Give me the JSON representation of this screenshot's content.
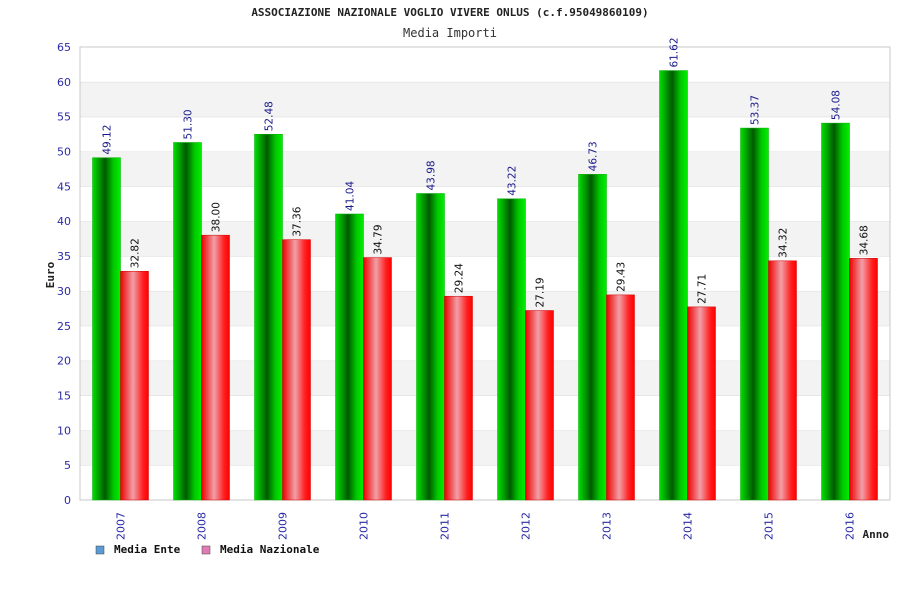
{
  "chart_data": {
    "type": "bar",
    "title": "ASSOCIAZIONE NAZIONALE VOGLIO VIVERE ONLUS (c.f.95049860109)",
    "subtitle": "Media Importi",
    "xlabel": "Anno",
    "ylabel": "Euro",
    "ylim": [
      0,
      65
    ],
    "yticks": [
      "0",
      "5",
      "10",
      "15",
      "20",
      "25",
      "30",
      "35",
      "40",
      "45",
      "50",
      "55",
      "60",
      "65"
    ],
    "grid": true,
    "legend_position": "bottom-left",
    "categories": [
      "2007",
      "2008",
      "2009",
      "2010",
      "2011",
      "2012",
      "2013",
      "2014",
      "2015",
      "2016"
    ],
    "series": [
      {
        "name": "Media Ente",
        "values": [
          49.12,
          51.3,
          52.48,
          41.04,
          43.98,
          43.22,
          46.73,
          61.62,
          53.37,
          54.08
        ],
        "labels": [
          "49.12",
          "51.30",
          "52.48",
          "41.04",
          "43.98",
          "43.22",
          "46.73",
          "61.62",
          "53.37",
          "54.08"
        ],
        "color": "#00c000",
        "legend_color": "#5b9bd5"
      },
      {
        "name": "Media Nazionale",
        "values": [
          32.82,
          38.0,
          37.36,
          34.79,
          29.24,
          27.19,
          29.43,
          27.71,
          34.32,
          34.68
        ],
        "labels": [
          "32.82",
          "38.00",
          "37.36",
          "34.79",
          "29.24",
          "27.19",
          "29.43",
          "27.71",
          "34.32",
          "34.68"
        ],
        "color": "#ff1a1a",
        "legend_color": "#e07bb4"
      }
    ]
  }
}
